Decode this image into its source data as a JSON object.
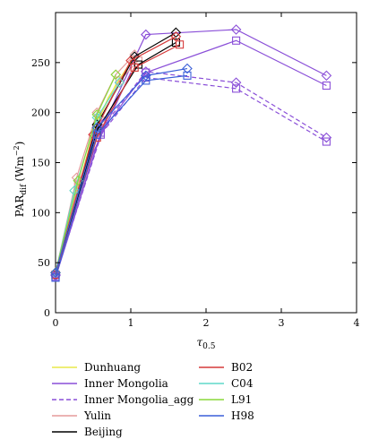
{
  "chart_data": {
    "type": "line",
    "xlabel": "τ",
    "xlabel_sub": "0.5",
    "ylabel": "PAR",
    "ylabel_sub": "dif",
    "ylabel_unit": "(Wm",
    "ylabel_exp": "−2",
    "ylabel_close": ")",
    "xlim": [
      0,
      4
    ],
    "ylim": [
      0,
      300
    ],
    "xticks": [
      0,
      1,
      2,
      3,
      4
    ],
    "yticks": [
      0,
      50,
      100,
      150,
      200,
      250
    ],
    "grid": false,
    "legend_position": "bottom",
    "series": [
      {
        "name": "Dunhuang",
        "color": "#e8e84a",
        "dash": false,
        "marker": "none",
        "x": [
          0,
          0.25,
          0.5,
          0.7,
          1.0
        ],
        "y": [
          40,
          110,
          180,
          215,
          250
        ]
      },
      {
        "name": "Dunhuang",
        "color": "#e8e84a",
        "dash": false,
        "marker": "none",
        "x": [
          0,
          0.3,
          0.55,
          0.8,
          1.05
        ],
        "y": [
          38,
          120,
          190,
          228,
          256
        ]
      },
      {
        "name": "Inner Mongolia",
        "color": "#8a4fd8",
        "dash": false,
        "marker": "square",
        "x": [
          0,
          0.6,
          1.2,
          2.4,
          3.6
        ],
        "y": [
          35,
          180,
          240,
          272,
          227
        ]
      },
      {
        "name": "Inner Mongolia",
        "color": "#8a4fd8",
        "dash": false,
        "marker": "diamond",
        "x": [
          0,
          0.65,
          1.2,
          2.4,
          3.6
        ],
        "y": [
          38,
          190,
          278,
          283,
          237
        ]
      },
      {
        "name": "Inner Mongolia",
        "color": "#8a4fd8",
        "dash": false,
        "marker": "none",
        "x": [
          0,
          0.5,
          1.0
        ],
        "y": [
          40,
          160,
          240
        ]
      },
      {
        "name": "Inner Mongolia_agg",
        "color": "#8a4fd8",
        "dash": true,
        "marker": "square",
        "x": [
          0,
          0.6,
          1.2,
          2.4,
          3.6
        ],
        "y": [
          36,
          178,
          235,
          224,
          171
        ]
      },
      {
        "name": "Inner Mongolia_agg",
        "color": "#8a4fd8",
        "dash": true,
        "marker": "diamond",
        "x": [
          0,
          0.65,
          1.2,
          2.4,
          3.6
        ],
        "y": [
          37,
          188,
          241,
          230,
          175
        ]
      },
      {
        "name": "Yulin",
        "color": "#e69a9a",
        "dash": false,
        "marker": "diamond",
        "x": [
          0,
          0.28,
          0.55,
          0.8,
          1.05
        ],
        "y": [
          40,
          135,
          200,
          238,
          258
        ]
      },
      {
        "name": "Yulin",
        "color": "#e69a9a",
        "dash": false,
        "marker": "square",
        "x": [
          0,
          0.3,
          0.6,
          0.85,
          1.1
        ],
        "y": [
          38,
          128,
          192,
          232,
          252
        ]
      },
      {
        "name": "Beijing",
        "color": "#000000",
        "dash": false,
        "marker": "diamond",
        "x": [
          0,
          0.55,
          1.05,
          1.6
        ],
        "y": [
          40,
          188,
          256,
          280
        ]
      },
      {
        "name": "Beijing",
        "color": "#000000",
        "dash": false,
        "marker": "square",
        "x": [
          0,
          0.55,
          1.1,
          1.6
        ],
        "y": [
          38,
          182,
          248,
          270
        ]
      },
      {
        "name": "B02",
        "color": "#d63a3a",
        "dash": false,
        "marker": "diamond",
        "x": [
          0,
          0.5,
          1.0,
          1.6
        ],
        "y": [
          40,
          178,
          252,
          276
        ]
      },
      {
        "name": "B02",
        "color": "#d63a3a",
        "dash": false,
        "marker": "square",
        "x": [
          0,
          0.55,
          1.05,
          1.65
        ],
        "y": [
          38,
          175,
          245,
          268
        ]
      },
      {
        "name": "C04",
        "color": "#5fd8c8",
        "dash": false,
        "marker": "diamond",
        "x": [
          0,
          0.25,
          0.55,
          0.85
        ],
        "y": [
          40,
          122,
          195,
          230
        ]
      },
      {
        "name": "L91",
        "color": "#8ad83a",
        "dash": false,
        "marker": "diamond",
        "x": [
          0,
          0.3,
          0.55,
          0.8
        ],
        "y": [
          40,
          132,
          198,
          238
        ]
      },
      {
        "name": "H98",
        "color": "#3a5fd8",
        "dash": false,
        "marker": "square",
        "x": [
          0,
          0.55,
          1.2,
          1.75
        ],
        "y": [
          35,
          178,
          232,
          237
        ]
      },
      {
        "name": "H98",
        "color": "#3a5fd8",
        "dash": false,
        "marker": "diamond",
        "x": [
          0,
          0.55,
          1.2,
          1.75
        ],
        "y": [
          40,
          185,
          237,
          244
        ]
      }
    ],
    "legend": {
      "left": [
        {
          "name": "Dunhuang",
          "color": "#e8e84a",
          "dash": false
        },
        {
          "name": "Inner Mongolia",
          "color": "#8a4fd8",
          "dash": false
        },
        {
          "name": "Inner Mongolia_agg",
          "color": "#8a4fd8",
          "dash": true
        },
        {
          "name": "Yulin",
          "color": "#e69a9a",
          "dash": false
        },
        {
          "name": "Beijing",
          "color": "#000000",
          "dash": false
        }
      ],
      "right": [
        {
          "name": "B02",
          "color": "#d63a3a",
          "dash": false
        },
        {
          "name": "C04",
          "color": "#5fd8c8",
          "dash": false
        },
        {
          "name": "L91",
          "color": "#8ad83a",
          "dash": false
        },
        {
          "name": "H98",
          "color": "#3a5fd8",
          "dash": false
        }
      ]
    }
  }
}
